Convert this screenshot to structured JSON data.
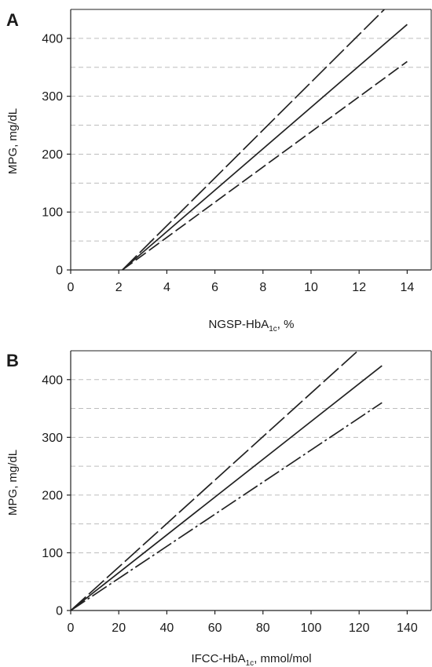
{
  "chart_data": [
    {
      "type": "line",
      "panel": "A",
      "xlabel": {
        "main": "NGSP-HbA",
        "sub": "1c",
        "suffix": ", %"
      },
      "ylabel": "MPG, mg/dL",
      "xlim": [
        0,
        15
      ],
      "ylim": [
        0,
        450
      ],
      "xticks": [
        0,
        2,
        4,
        6,
        8,
        10,
        12,
        14
      ],
      "yticks": [
        0,
        100,
        200,
        300,
        400
      ],
      "grid": {
        "y": [
          50,
          100,
          150,
          200,
          250,
          300,
          350,
          400
        ],
        "style": "dashed"
      },
      "series": [
        {
          "style": "long-dash",
          "x": [
            2.15,
            13.05
          ],
          "y": [
            0,
            450
          ]
        },
        {
          "style": "solid",
          "x": [
            2.15,
            14.0
          ],
          "y": [
            0,
            424
          ]
        },
        {
          "style": "dash",
          "x": [
            2.15,
            14.0
          ],
          "y": [
            0,
            360
          ]
        }
      ]
    },
    {
      "type": "line",
      "panel": "B",
      "xlabel": {
        "main": "IFCC-HbA",
        "sub": "1c",
        "suffix": ", mmol/mol"
      },
      "ylabel": "MPG, mg/dL",
      "xlim": [
        0,
        150
      ],
      "ylim": [
        0,
        450
      ],
      "xticks": [
        0,
        20,
        40,
        60,
        80,
        100,
        120,
        140
      ],
      "yticks": [
        0,
        100,
        200,
        300,
        400
      ],
      "grid": {
        "y": [
          50,
          100,
          150,
          200,
          250,
          300,
          350,
          400
        ],
        "style": "dashed"
      },
      "series": [
        {
          "style": "long-dash",
          "x": [
            0,
            119.5
          ],
          "y": [
            0,
            450
          ]
        },
        {
          "style": "solid",
          "x": [
            0,
            129.5
          ],
          "y": [
            0,
            424
          ]
        },
        {
          "style": "dash-dot",
          "x": [
            0,
            129.5
          ],
          "y": [
            0,
            360
          ]
        }
      ]
    }
  ]
}
